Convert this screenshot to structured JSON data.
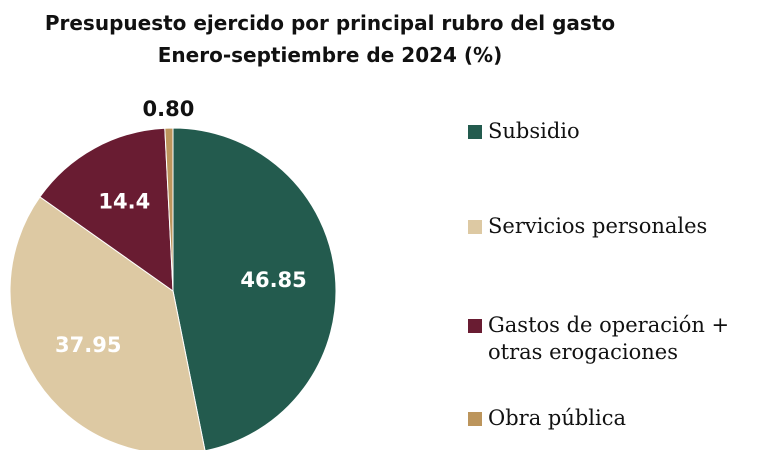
{
  "chart_data": {
    "type": "pie",
    "title": "Presupuesto ejercido por principal rubro del gasto",
    "subtitle": "Enero-septiembre de 2024 (%)",
    "categories": [
      "Subsidio",
      "Servicios personales",
      "Gastos de operación + otras erogaciones",
      "Obra pública"
    ],
    "values": [
      46.85,
      37.95,
      14.4,
      0.8
    ],
    "value_labels": [
      "46.85",
      "37.95",
      "14.4",
      "0.80"
    ],
    "colors": [
      "#235b4e",
      "#ddc9a3",
      "#691c32",
      "#bc955c"
    ]
  }
}
